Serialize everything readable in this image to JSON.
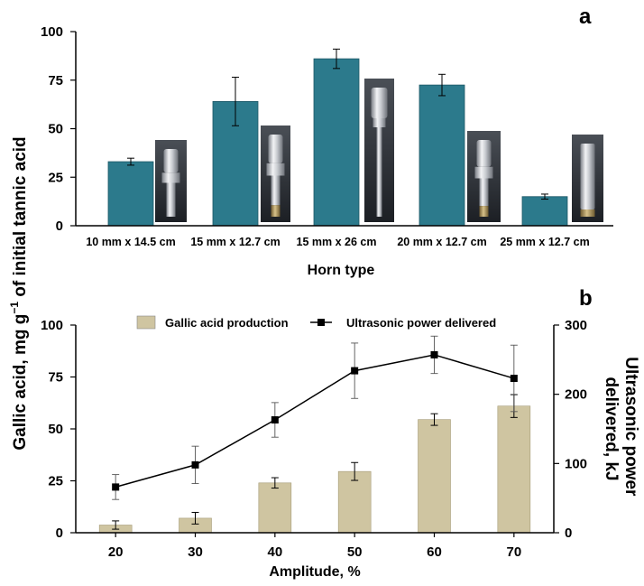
{
  "chart_data": [
    {
      "type": "bar",
      "panel_label": "a",
      "title": "",
      "xlabel": "Horn type",
      "ylabel": "",
      "categories": [
        "10 mm x 14.5 cm",
        "15 mm x 12.7 cm",
        "15 mm x 26 cm",
        "20 mm x 12.7 cm",
        "25 mm x 12.7 cm"
      ],
      "values": [
        33,
        64,
        86,
        72.5,
        15
      ],
      "errors": [
        1.8,
        12.5,
        5,
        5.5,
        1.3
      ],
      "ylim": [
        0,
        100
      ],
      "yticks": [
        "0",
        "25",
        "50",
        "75",
        "100"
      ],
      "bar_color": "#2c7a8c",
      "has_horn_photos": true
    },
    {
      "type": "bar+line",
      "panel_label": "b",
      "title": "",
      "xlabel": "Amplitude, %",
      "ylabel": "Gallic acid, mg g⁻¹ of initial tannic acid",
      "ylabel_right": "Ultrasonic power delivered, kJ",
      "ylabel_right_lines": [
        "Ultrasonic power",
        "delivered, kJ"
      ],
      "categories": [
        "20",
        "30",
        "40",
        "50",
        "60",
        "70"
      ],
      "ylim": [
        0,
        100
      ],
      "ylim_right": [
        0,
        300
      ],
      "yticks": [
        "0",
        "25",
        "50",
        "75",
        "100"
      ],
      "yticks_right": [
        "0",
        "100",
        "200",
        "300"
      ],
      "legend": "top-center",
      "series": [
        {
          "name": "Gallic acid production",
          "kind": "bar",
          "axis": "left",
          "color": "#cfc5a1",
          "values": [
            3.7,
            7,
            24,
            29.5,
            54.5,
            61
          ],
          "errors": [
            2,
            2.8,
            2.5,
            4.3,
            2.8,
            5.5
          ]
        },
        {
          "name": "Ultrasonic power delivered",
          "kind": "line",
          "axis": "right",
          "color": "#000000",
          "values": [
            66,
            98,
            163,
            234,
            257,
            223
          ],
          "errors": [
            18,
            27,
            25,
            40,
            27,
            48
          ]
        }
      ]
    }
  ],
  "ylabel_shared_text": "Gallic acid, mg g",
  "ylabel_shared_sup": "−1",
  "ylabel_shared_tail": " of initial tannic acid"
}
